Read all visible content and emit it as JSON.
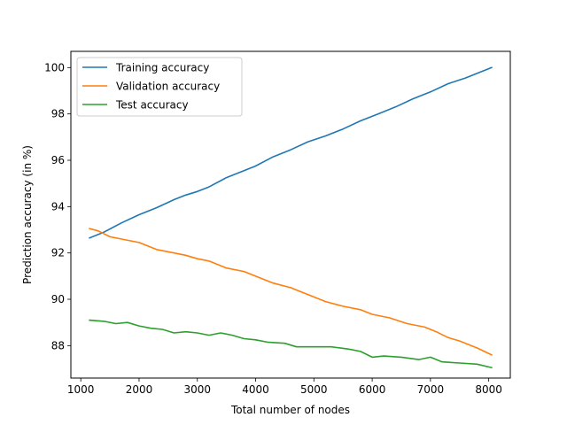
{
  "chart_data": {
    "type": "line",
    "title": "",
    "xlabel": "Total number of nodes",
    "ylabel": "Prediction accuracy (in %)",
    "xlim": [
      830,
      8370
    ],
    "ylim": [
      86.6,
      100.7
    ],
    "xticks": [
      1000,
      2000,
      3000,
      4000,
      5000,
      6000,
      7000,
      8000
    ],
    "yticks": [
      88,
      90,
      92,
      94,
      96,
      98,
      100
    ],
    "grid": false,
    "legend_position": "top-left",
    "series": [
      {
        "name": "Training accuracy",
        "color": "#1f77b4",
        "x": [
          1150,
          1400,
          1700,
          2000,
          2300,
          2600,
          2800,
          3000,
          3200,
          3500,
          3800,
          4000,
          4300,
          4600,
          4900,
          5200,
          5500,
          5800,
          6100,
          6400,
          6700,
          7000,
          7300,
          7600,
          8050
        ],
        "y": [
          92.65,
          92.9,
          93.3,
          93.65,
          93.95,
          94.3,
          94.5,
          94.65,
          94.85,
          95.25,
          95.55,
          95.75,
          96.15,
          96.45,
          96.8,
          97.05,
          97.35,
          97.7,
          98.0,
          98.3,
          98.65,
          98.95,
          99.3,
          99.55,
          100.0
        ]
      },
      {
        "name": "Validation accuracy",
        "color": "#ff7f0e",
        "x": [
          1150,
          1300,
          1500,
          1700,
          2000,
          2300,
          2600,
          2800,
          3000,
          3200,
          3500,
          3800,
          4000,
          4300,
          4600,
          4900,
          5200,
          5500,
          5800,
          6000,
          6300,
          6600,
          6900,
          7100,
          7300,
          7500,
          7800,
          8050
        ],
        "y": [
          93.05,
          92.95,
          92.7,
          92.6,
          92.45,
          92.15,
          92.0,
          91.9,
          91.75,
          91.65,
          91.35,
          91.2,
          91.0,
          90.7,
          90.5,
          90.2,
          89.9,
          89.7,
          89.55,
          89.35,
          89.2,
          88.95,
          88.8,
          88.6,
          88.35,
          88.2,
          87.9,
          87.6
        ]
      },
      {
        "name": "Test accuracy",
        "color": "#2ca02c",
        "x": [
          1150,
          1400,
          1600,
          1800,
          2000,
          2200,
          2400,
          2600,
          2800,
          3000,
          3200,
          3400,
          3600,
          3800,
          4000,
          4200,
          4500,
          4700,
          5000,
          5300,
          5600,
          5800,
          6000,
          6200,
          6500,
          6800,
          7000,
          7200,
          7500,
          7800,
          8050
        ],
        "y": [
          89.1,
          89.05,
          88.95,
          89.0,
          88.85,
          88.75,
          88.7,
          88.55,
          88.6,
          88.55,
          88.45,
          88.55,
          88.45,
          88.3,
          88.25,
          88.15,
          88.1,
          87.95,
          87.95,
          87.95,
          87.85,
          87.75,
          87.5,
          87.55,
          87.5,
          87.4,
          87.5,
          87.3,
          87.25,
          87.2,
          87.05
        ]
      }
    ]
  }
}
